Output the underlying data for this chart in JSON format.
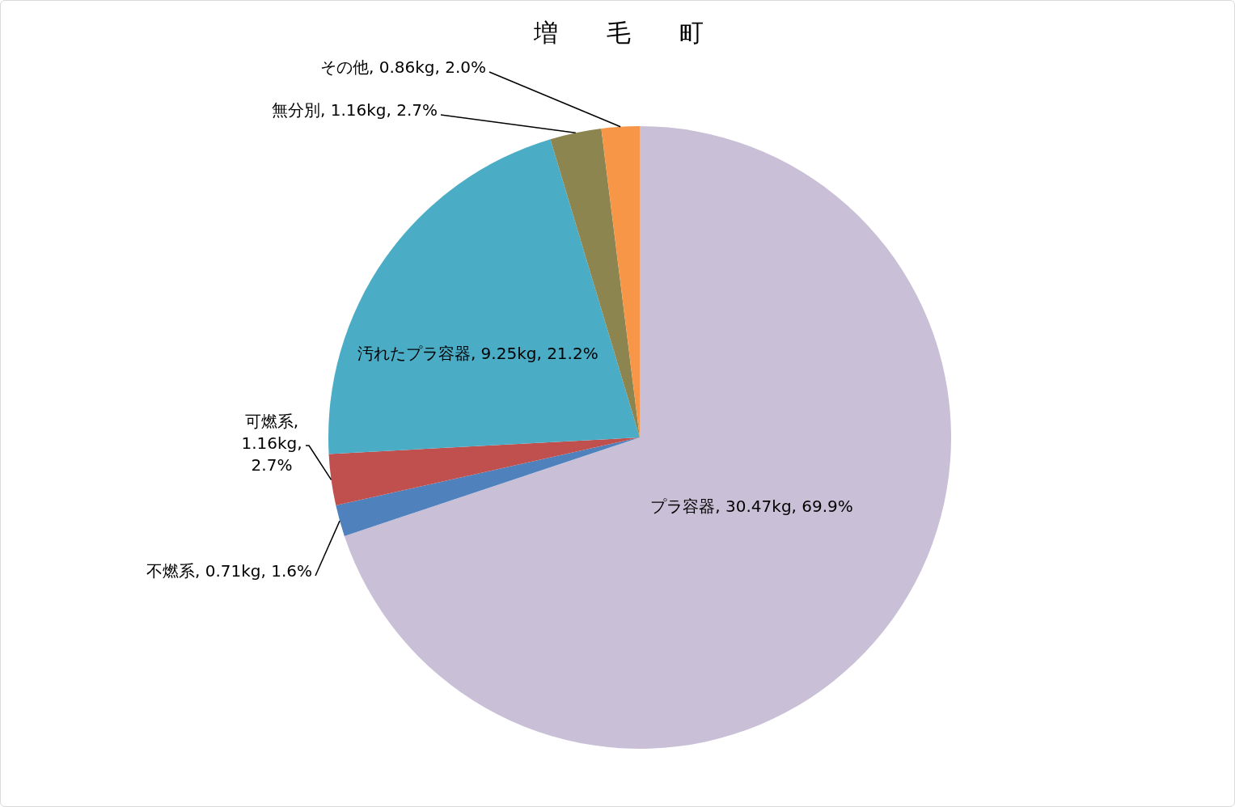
{
  "chart_data": {
    "type": "pie",
    "title": "増　　毛　　町",
    "categories": [
      "プラ容器",
      "不燃系",
      "可燃系",
      "汚れたプラ容器",
      "無分別",
      "その他"
    ],
    "values": [
      30.47,
      0.71,
      1.16,
      9.25,
      1.16,
      0.86
    ],
    "colors": [
      "#c9bfd6",
      "#4f81bd",
      "#c0504d",
      "#4bacc6",
      "#8c8550",
      "#f79646"
    ],
    "value_labels": [
      ", 30.47kg, 69.9%",
      ", 0.71kg, 1.6%",
      ", 1.16kg, 2.7%",
      ", 9.25kg, 21.2%",
      ", 1.16kg, 2.7%",
      ", 0.86kg, 2.0%"
    ]
  }
}
